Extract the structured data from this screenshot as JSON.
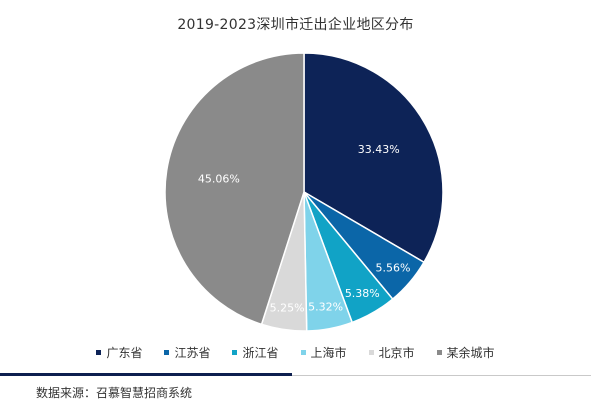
{
  "chart_data": {
    "type": "pie",
    "title": "2019-2023深圳市迁出企业地区分布",
    "slices": [
      {
        "name": "广东省",
        "value": 33.43,
        "label": "33.43%",
        "color": "#0d2357"
      },
      {
        "name": "江苏省",
        "value": 5.56,
        "label": "5.56%",
        "color": "#0b66a8"
      },
      {
        "name": "浙江省",
        "value": 5.38,
        "label": "5.38%",
        "color": "#11a3c6"
      },
      {
        "name": "上海市",
        "value": 5.32,
        "label": "5.32%",
        "color": "#7fd3ea"
      },
      {
        "name": "北京市",
        "value": 5.25,
        "label": "5.25%",
        "color": "#d9d9d9"
      },
      {
        "name": "某余城市",
        "value": 45.06,
        "label": "45.06%",
        "color": "#8a8a8a"
      }
    ],
    "legend_position": "bottom"
  },
  "footer": {
    "source": "数据来源：召慕智慧招商系统"
  }
}
